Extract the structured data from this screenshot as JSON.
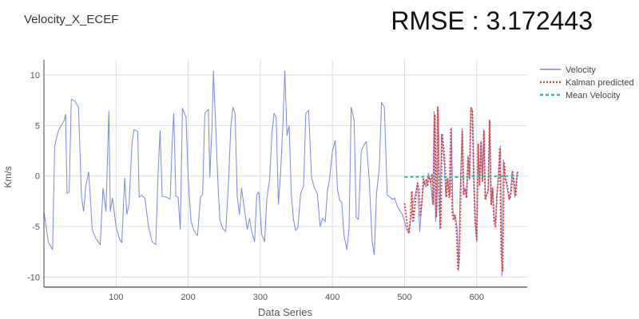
{
  "title": "Velocity_X_ECEF",
  "rmse_text": "RMSE : 3.172443",
  "chart_data": {
    "type": "line",
    "title": "Velocity_X_ECEF",
    "xlabel": "Data Series",
    "ylabel": "Km/s",
    "xlim": [
      0,
      670
    ],
    "ylim": [
      -11,
      11.5
    ],
    "xticks": [
      100,
      200,
      300,
      400,
      500,
      600
    ],
    "yticks": [
      -10,
      -5,
      0,
      5,
      10
    ],
    "grid": true,
    "legend": "top-right",
    "colors": {
      "velocity": "#7b87e6",
      "kalman": "#e8433a",
      "mean": "#22c48c",
      "grid": "#dddddd",
      "axis": "#444444",
      "text": "#555555"
    },
    "series": [
      {
        "name": "Velocity",
        "style": "solid",
        "color": "#7b87e6",
        "points": [
          [
            0,
            -3.5
          ],
          [
            3,
            -5
          ],
          [
            6,
            -6.5
          ],
          [
            12,
            -7.3
          ],
          [
            15,
            3
          ],
          [
            20,
            4.5
          ],
          [
            28,
            5.5
          ],
          [
            30,
            6.1
          ],
          [
            32,
            -1.7
          ],
          [
            35,
            -1.6
          ],
          [
            38,
            7.6
          ],
          [
            43,
            7.4
          ],
          [
            48,
            6.8
          ],
          [
            52,
            -2
          ],
          [
            55,
            -3.5
          ],
          [
            58,
            -1
          ],
          [
            62,
            0.4
          ],
          [
            64,
            -1.8
          ],
          [
            67,
            -5.3
          ],
          [
            72,
            -6.2
          ],
          [
            78,
            -6.8
          ],
          [
            82,
            -1.2
          ],
          [
            86,
            -3.5
          ],
          [
            90,
            6.4
          ],
          [
            92,
            -3.5
          ],
          [
            95,
            -2.2
          ],
          [
            100,
            -5
          ],
          [
            105,
            -6.3
          ],
          [
            108,
            -6.6
          ],
          [
            112,
            -0.2
          ],
          [
            115,
            -3.8
          ],
          [
            118,
            -2.8
          ],
          [
            122,
            3.2
          ],
          [
            125,
            4.6
          ],
          [
            130,
            4.4
          ],
          [
            132,
            -2.1
          ],
          [
            135,
            -1.9
          ],
          [
            140,
            -2.2
          ],
          [
            145,
            -5
          ],
          [
            150,
            -6.5
          ],
          [
            155,
            -6.8
          ],
          [
            158,
            -0.2
          ],
          [
            161,
            4.5
          ],
          [
            164,
            -2
          ],
          [
            170,
            -2.1
          ],
          [
            175,
            -2.3
          ],
          [
            178,
            3.5
          ],
          [
            180,
            6.2
          ],
          [
            183,
            -2
          ],
          [
            186,
            -2.1
          ],
          [
            189,
            -5.3
          ],
          [
            192,
            6.7
          ],
          [
            197,
            5.8
          ],
          [
            200,
            -0.3
          ],
          [
            204,
            -4.5
          ],
          [
            208,
            -5.4
          ],
          [
            213,
            -5.9
          ],
          [
            217,
            -2.1
          ],
          [
            220,
            -1.8
          ],
          [
            223,
            6.2
          ],
          [
            228,
            6.6
          ],
          [
            230,
            -0.1
          ],
          [
            233,
            4.9
          ],
          [
            235,
            10.4
          ],
          [
            238,
            5.3
          ],
          [
            241,
            -0.3
          ],
          [
            244,
            -4.4
          ],
          [
            248,
            -5.2
          ],
          [
            252,
            -5.5
          ],
          [
            256,
            -0.4
          ],
          [
            259,
            4.8
          ],
          [
            262,
            6.8
          ],
          [
            265,
            6.2
          ],
          [
            268,
            -2
          ],
          [
            271,
            -3.8
          ],
          [
            274,
            -1.2
          ],
          [
            278,
            -3.3
          ],
          [
            282,
            -5.3
          ],
          [
            285,
            -4.2
          ],
          [
            288,
            -5.5
          ],
          [
            292,
            -6.5
          ],
          [
            295,
            -1.9
          ],
          [
            298,
            -1.6
          ],
          [
            302,
            -5.8
          ],
          [
            306,
            -6.5
          ],
          [
            309,
            -2.3
          ],
          [
            313,
            -0.3
          ],
          [
            316,
            4.1
          ],
          [
            319,
            6.2
          ],
          [
            322,
            5.8
          ],
          [
            325,
            -2.8
          ],
          [
            328,
            0.2
          ],
          [
            331,
            4.6
          ],
          [
            334,
            10.4
          ],
          [
            337,
            4
          ],
          [
            340,
            5
          ],
          [
            343,
            -1.9
          ],
          [
            346,
            -4.3
          ],
          [
            349,
            -5.4
          ],
          [
            352,
            -5.1
          ],
          [
            356,
            -1.7
          ],
          [
            360,
            -1
          ],
          [
            363,
            6.2
          ],
          [
            367,
            6.5
          ],
          [
            371,
            -0.1
          ],
          [
            375,
            -1.2
          ],
          [
            379,
            -1.7
          ],
          [
            383,
            -5
          ],
          [
            386,
            -4.2
          ],
          [
            390,
            -4.5
          ],
          [
            393,
            -1.5
          ],
          [
            396,
            -0.3
          ],
          [
            400,
            2.5
          ],
          [
            404,
            3.5
          ],
          [
            407,
            -1.3
          ],
          [
            410,
            -2.4
          ],
          [
            413,
            -2.6
          ],
          [
            416,
            -5.8
          ],
          [
            420,
            -7.3
          ],
          [
            423,
            -5.2
          ],
          [
            426,
            6.8
          ],
          [
            430,
            5.5
          ],
          [
            433,
            -4.1
          ],
          [
            436,
            -4.3
          ],
          [
            440,
            2.5
          ],
          [
            444,
            3.1
          ],
          [
            447,
            3.4
          ],
          [
            451,
            -0.3
          ],
          [
            455,
            -6.5
          ],
          [
            458,
            -7.8
          ],
          [
            461,
            -1.8
          ],
          [
            465,
            0.8
          ],
          [
            468,
            7.3
          ],
          [
            472,
            6.8
          ],
          [
            476,
            -1.9
          ],
          [
            480,
            -2.1
          ],
          [
            483,
            -2.3
          ],
          [
            486,
            -2.2
          ],
          [
            490,
            -3
          ],
          [
            494,
            -3.5
          ],
          [
            497,
            -3.8
          ],
          [
            500,
            -4.5
          ],
          [
            503,
            -5.4
          ],
          [
            506,
            -5.6
          ],
          [
            509,
            -4.1
          ],
          [
            512,
            -2.6
          ],
          [
            515,
            -1.9
          ],
          [
            518,
            -0.7
          ],
          [
            521,
            -5.5
          ],
          [
            524,
            -2.4
          ],
          [
            527,
            -0.6
          ],
          [
            530,
            -1.1
          ],
          [
            533,
            0.3
          ],
          [
            536,
            -0.6
          ],
          [
            539,
            -2.8
          ],
          [
            541,
            6.4
          ],
          [
            543,
            -4.5
          ],
          [
            545,
            -3.1
          ],
          [
            547,
            6.6
          ],
          [
            549,
            -5.3
          ],
          [
            551,
            4.1
          ],
          [
            553,
            3
          ],
          [
            555,
            1.2
          ],
          [
            557,
            -2
          ],
          [
            559,
            -0.2
          ],
          [
            561,
            -1.2
          ],
          [
            563,
            -1.9
          ],
          [
            565,
            4.8
          ],
          [
            567,
            -3.4
          ],
          [
            569,
            -4.1
          ],
          [
            571,
            -4.2
          ],
          [
            573,
            -5.2
          ],
          [
            575,
            -9.4
          ],
          [
            577,
            -1.5
          ],
          [
            580,
            4.7
          ],
          [
            582,
            -1.6
          ],
          [
            584,
            -1.2
          ],
          [
            586,
            -2.1
          ],
          [
            588,
            2
          ],
          [
            590,
            -0.4
          ],
          [
            592,
            6.8
          ],
          [
            594,
            6.6
          ],
          [
            596,
            -0.5
          ],
          [
            598,
            -4.4
          ],
          [
            600,
            -6.5
          ],
          [
            602,
            3.1
          ],
          [
            604,
            -0.9
          ],
          [
            606,
            3.5
          ],
          [
            608,
            -0.4
          ],
          [
            610,
            4.6
          ],
          [
            612,
            -2.3
          ],
          [
            614,
            -1.9
          ],
          [
            616,
            -1.4
          ],
          [
            618,
            5.6
          ],
          [
            620,
            -2.8
          ],
          [
            622,
            -1.1
          ],
          [
            624,
            -3.8
          ],
          [
            626,
            -4.7
          ],
          [
            628,
            -1.9
          ],
          [
            630,
            -0.2
          ],
          [
            633,
            3
          ],
          [
            635,
            -9.9
          ],
          [
            637,
            1.6
          ],
          [
            639,
            -0.1
          ],
          [
            641,
            -0.7
          ],
          [
            643,
            -1.5
          ],
          [
            645,
            -2.4
          ],
          [
            647,
            -1.6
          ],
          [
            649,
            0.5
          ],
          [
            651,
            -0.6
          ],
          [
            653,
            -2.1
          ],
          [
            656,
            0.2
          ],
          [
            658,
            0.4
          ]
        ]
      },
      {
        "name": "Kalman predicted",
        "style": "dotted",
        "color": "#e8433a",
        "points": [
          [
            500,
            -2.7
          ],
          [
            502,
            -3.8
          ],
          [
            504,
            -5
          ],
          [
            506,
            -5.7
          ],
          [
            508,
            -4.3
          ],
          [
            510,
            -1.5
          ],
          [
            512,
            -4.6
          ],
          [
            514,
            -3.2
          ],
          [
            516,
            -1.8
          ],
          [
            518,
            -0.7
          ],
          [
            520,
            -1.3
          ],
          [
            522,
            -4
          ],
          [
            524,
            -2.6
          ],
          [
            526,
            -0.3
          ],
          [
            528,
            -0.8
          ],
          [
            530,
            -0.4
          ],
          [
            532,
            -0.9
          ],
          [
            534,
            -0.1
          ],
          [
            536,
            -0.6
          ],
          [
            538,
            0.2
          ],
          [
            540,
            -2.8
          ],
          [
            542,
            6.1
          ],
          [
            544,
            -4.1
          ],
          [
            546,
            6.8
          ],
          [
            548,
            -2.9
          ],
          [
            550,
            -5.1
          ],
          [
            552,
            4.2
          ],
          [
            554,
            3
          ],
          [
            556,
            1.1
          ],
          [
            558,
            -2.1
          ],
          [
            560,
            -0.3
          ],
          [
            562,
            -2.1
          ],
          [
            564,
            4.6
          ],
          [
            566,
            -3.5
          ],
          [
            568,
            -4.4
          ],
          [
            570,
            -3.9
          ],
          [
            572,
            -5.3
          ],
          [
            574,
            -9.2
          ],
          [
            576,
            -8.3
          ],
          [
            578,
            -1.2
          ],
          [
            580,
            4.4
          ],
          [
            582,
            -1.8
          ],
          [
            584,
            -1.3
          ],
          [
            586,
            -2.2
          ],
          [
            588,
            1.8
          ],
          [
            590,
            -0.3
          ],
          [
            592,
            6.7
          ],
          [
            594,
            6.4
          ],
          [
            596,
            -0.4
          ],
          [
            598,
            -4.6
          ],
          [
            600,
            -6.3
          ],
          [
            602,
            3.2
          ],
          [
            604,
            -1
          ],
          [
            606,
            3.4
          ],
          [
            608,
            -0.5
          ],
          [
            610,
            4.5
          ],
          [
            612,
            -2.4
          ],
          [
            614,
            -1.8
          ],
          [
            616,
            -1.5
          ],
          [
            618,
            5.5
          ],
          [
            620,
            -2.9
          ],
          [
            622,
            -1.2
          ],
          [
            624,
            -4.5
          ],
          [
            626,
            -5
          ],
          [
            628,
            -2
          ],
          [
            630,
            -0.3
          ],
          [
            632,
            2.8
          ],
          [
            634,
            -7.7
          ],
          [
            636,
            -9.4
          ],
          [
            638,
            1.4
          ],
          [
            640,
            -0.2
          ],
          [
            642,
            -0.8
          ],
          [
            644,
            -1.6
          ],
          [
            646,
            -2.3
          ],
          [
            648,
            -1.5
          ],
          [
            650,
            0.4
          ],
          [
            652,
            -0.7
          ],
          [
            654,
            -2
          ],
          [
            656,
            0.3
          ],
          [
            658,
            0.5
          ]
        ]
      },
      {
        "name": "Mean Velocity",
        "style": "dashed",
        "color": "#22c48c",
        "points": [
          [
            500,
            -0.1
          ],
          [
            520,
            -0.08
          ],
          [
            540,
            -0.05
          ],
          [
            560,
            -0.12
          ],
          [
            580,
            -0.1
          ],
          [
            600,
            0
          ],
          [
            620,
            -0.05
          ],
          [
            640,
            0
          ],
          [
            658,
            0.05
          ]
        ]
      }
    ]
  }
}
